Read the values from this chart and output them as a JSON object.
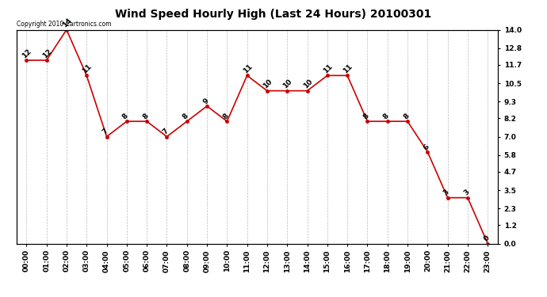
{
  "title": "Wind Speed Hourly High (Last 24 Hours) 20100301",
  "copyright_text": "Copyright 2010 Cartronics.com",
  "hours": [
    "00:00",
    "01:00",
    "02:00",
    "03:00",
    "04:00",
    "05:00",
    "06:00",
    "07:00",
    "08:00",
    "09:00",
    "10:00",
    "11:00",
    "12:00",
    "13:00",
    "14:00",
    "15:00",
    "16:00",
    "17:00",
    "18:00",
    "19:00",
    "20:00",
    "21:00",
    "22:00",
    "23:00"
  ],
  "values": [
    12,
    12,
    14,
    11,
    7,
    8,
    8,
    7,
    8,
    9,
    8,
    11,
    10,
    10,
    10,
    11,
    11,
    8,
    8,
    8,
    6,
    3,
    3,
    0
  ],
  "line_color": "#cc0000",
  "marker_color": "#cc0000",
  "bg_color": "#ffffff",
  "plot_bg_color": "#ffffff",
  "grid_color": "#bbbbbb",
  "title_fontsize": 10,
  "tick_fontsize": 6.5,
  "annotation_fontsize": 6.5,
  "ylim_min": 0,
  "ylim_max": 14.0,
  "yticks_right": [
    0.0,
    1.2,
    2.3,
    3.5,
    4.7,
    5.8,
    7.0,
    8.2,
    9.3,
    10.5,
    11.7,
    12.8,
    14.0
  ]
}
